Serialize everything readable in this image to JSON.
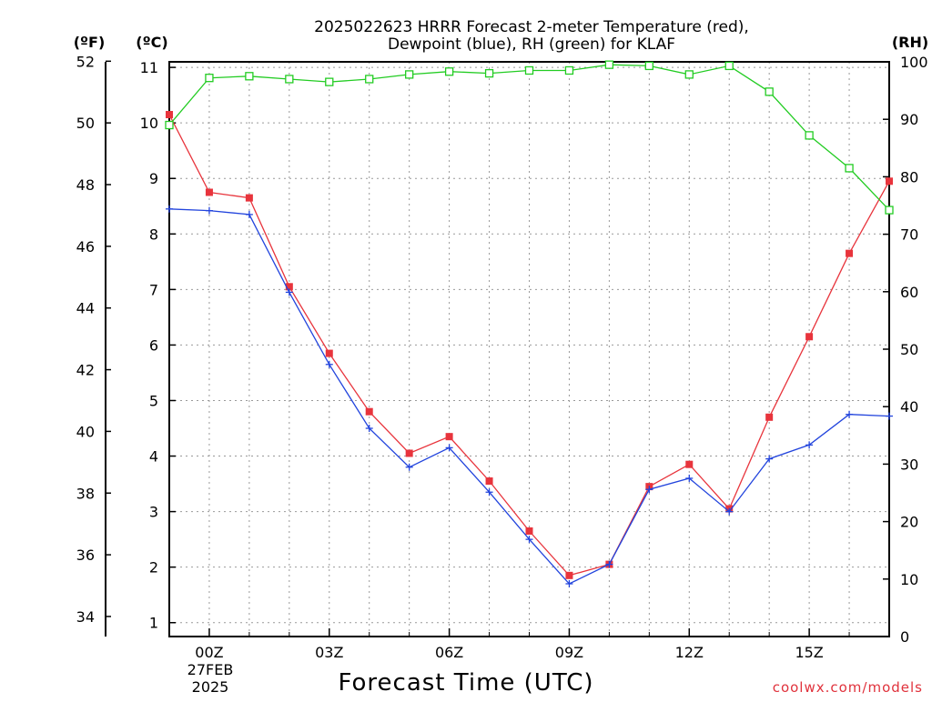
{
  "chart_data": {
    "type": "line",
    "title_line1": "2025022623 HRRR Forecast 2-meter Temperature (red),",
    "title_line2": "Dewpoint (blue), RH (green) for KLAF",
    "xlabel": "Forecast Time (UTC)",
    "credit": "coolwx.com/models",
    "unit_f": "(ºF)",
    "unit_c": "(ºC)",
    "unit_rh": "(RH)",
    "x_hours": [
      0,
      1,
      2,
      3,
      4,
      5,
      6,
      7,
      8,
      9,
      10,
      11,
      12,
      13,
      14,
      15,
      16,
      17,
      18
    ],
    "x_range": [
      -1,
      17
    ],
    "x_ticks": [
      {
        "hour": 0,
        "label": "00Z"
      },
      {
        "hour": 3,
        "label": "03Z"
      },
      {
        "hour": 6,
        "label": "06Z"
      },
      {
        "hour": 9,
        "label": "09Z"
      },
      {
        "hour": 12,
        "label": "12Z"
      },
      {
        "hour": 15,
        "label": "15Z"
      }
    ],
    "date_label_line1": "27FEB",
    "date_label_line2": "2025",
    "y_left_c": {
      "range": [
        0.75,
        11.1
      ],
      "ticks": [
        "1",
        "2",
        "3",
        "4",
        "5",
        "6",
        "7",
        "8",
        "9",
        "10",
        "11"
      ]
    },
    "y_left_f": {
      "range": [
        33.35,
        51.98
      ],
      "ticks": [
        "34",
        "36",
        "38",
        "40",
        "42",
        "44",
        "46",
        "48",
        "50",
        "52"
      ]
    },
    "y_right_rh": {
      "range": [
        0,
        100
      ],
      "ticks": [
        "0",
        "10",
        "20",
        "30",
        "40",
        "50",
        "60",
        "70",
        "80",
        "90",
        "100"
      ]
    },
    "series": [
      {
        "name": "Temperature",
        "color": "#e8343c",
        "marker": "filled-square",
        "axis": "celsius",
        "x": [
          -1,
          0,
          1,
          2,
          3,
          4,
          5,
          6,
          7,
          8,
          9,
          10,
          11,
          12,
          13,
          14,
          15,
          16,
          17
        ],
        "values": [
          10.15,
          8.75,
          8.65,
          7.05,
          5.85,
          4.8,
          4.05,
          4.35,
          3.55,
          2.65,
          1.85,
          2.05,
          3.45,
          3.85,
          3.05,
          4.7,
          6.15,
          7.65,
          8.95
        ]
      },
      {
        "name": "Dewpoint",
        "color": "#2244dd",
        "marker": "plus",
        "axis": "celsius",
        "x": [
          -1,
          0,
          1,
          2,
          3,
          4,
          5,
          6,
          7,
          8,
          9,
          10,
          11,
          12,
          13,
          14,
          15,
          16,
          17
        ],
        "values": [
          8.45,
          8.42,
          8.35,
          6.95,
          5.65,
          4.5,
          3.8,
          4.15,
          3.35,
          2.5,
          1.7,
          2.05,
          3.4,
          3.6,
          3.0,
          3.95,
          4.2,
          4.75,
          4.72
        ]
      },
      {
        "name": "RH",
        "color": "#22cc22",
        "marker": "open-square",
        "axis": "rh",
        "x": [
          -1,
          0,
          1,
          2,
          3,
          4,
          5,
          6,
          7,
          8,
          9,
          10,
          11,
          12,
          13,
          14,
          15,
          16,
          17
        ],
        "values": [
          89,
          97.2,
          97.5,
          97,
          96.5,
          97,
          97.8,
          98.3,
          98,
          98.5,
          98.5,
          99.5,
          99.3,
          97.8,
          99.3,
          94.8,
          87.2,
          81.5,
          74.2
        ]
      }
    ],
    "grid": true
  }
}
